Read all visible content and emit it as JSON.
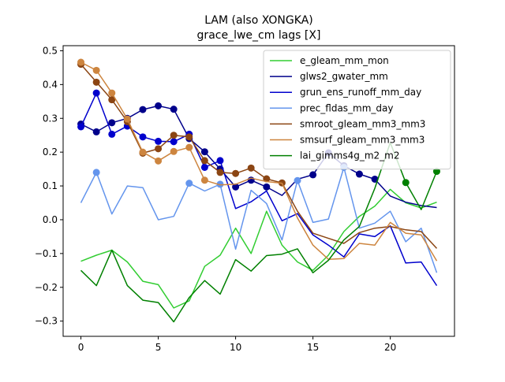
{
  "chart_data": {
    "type": "line",
    "title": "LAM (also XONGKA)",
    "subtitle": "grace_lwe_cm lags [X]",
    "xlabel": "",
    "ylabel": "",
    "xlim": [
      -1.15,
      24.15
    ],
    "ylim": [
      -0.345,
      0.515
    ],
    "xticks": [
      0,
      5,
      10,
      15,
      20
    ],
    "yticks": [
      -0.3,
      -0.2,
      -0.1,
      0.0,
      0.1,
      0.2,
      0.3,
      0.4,
      0.5
    ],
    "ytick_labels": [
      "−0.3",
      "−0.2",
      "−0.1",
      "0.0",
      "0.1",
      "0.2",
      "0.3",
      "0.4",
      "0.5"
    ],
    "grid": false,
    "legend_position": "top-right",
    "x": [
      0,
      1,
      2,
      3,
      4,
      5,
      6,
      7,
      8,
      9,
      10,
      11,
      12,
      13,
      14,
      15,
      16,
      17,
      18,
      19,
      20,
      21,
      22,
      23
    ],
    "series": [
      {
        "name": "e_gleam_mm_mon",
        "color": "#32cd32",
        "values": [
          -0.123,
          -0.105,
          -0.09,
          -0.125,
          -0.182,
          -0.192,
          -0.261,
          -0.24,
          -0.138,
          -0.105,
          -0.025,
          -0.1,
          0.025,
          -0.075,
          -0.125,
          -0.15,
          -0.105,
          -0.035,
          0.01,
          0.04,
          0.09,
          0.05,
          0.035,
          0.052
        ],
        "markers": []
      },
      {
        "name": "glws2_gwater_mm",
        "color": "#00008b",
        "values": [
          0.283,
          0.26,
          0.287,
          0.3,
          0.326,
          0.337,
          0.327,
          0.24,
          0.201,
          0.15,
          0.097,
          0.117,
          0.097,
          0.072,
          0.12,
          0.133,
          0.198,
          0.16,
          0.135,
          0.12,
          0.07,
          0.052,
          0.042,
          0.036
        ],
        "markers": [
          0,
          1,
          2,
          3,
          4,
          5,
          6,
          7,
          8,
          9,
          10,
          11,
          12,
          15,
          16,
          17,
          18,
          19
        ]
      },
      {
        "name": "grun_ens_runoff_mm_day",
        "color": "#0000cd",
        "values": [
          0.275,
          0.375,
          0.253,
          0.277,
          0.245,
          0.232,
          0.231,
          0.253,
          0.155,
          0.175,
          0.033,
          0.053,
          0.085,
          -0.003,
          0.018,
          -0.045,
          -0.075,
          -0.11,
          -0.042,
          -0.05,
          -0.018,
          -0.128,
          -0.125,
          -0.195
        ],
        "markers": [
          0,
          1,
          2,
          3,
          4,
          5,
          6,
          7,
          8,
          9
        ]
      },
      {
        "name": "prec_fldas_mm_day",
        "color": "#6495ed",
        "values": [
          0.05,
          0.14,
          0.017,
          0.1,
          0.095,
          0.0,
          0.01,
          0.108,
          0.085,
          0.105,
          -0.087,
          0.087,
          0.048,
          -0.06,
          0.116,
          -0.008,
          0.002,
          0.155,
          -0.025,
          -0.01,
          0.025,
          -0.065,
          -0.025,
          -0.157
        ],
        "markers": [
          1,
          7,
          9,
          14,
          17
        ]
      },
      {
        "name": "smroot_gleam_mm3_mm3",
        "color": "#8b4513",
        "values": [
          0.46,
          0.407,
          0.355,
          0.29,
          0.197,
          0.21,
          0.25,
          0.245,
          0.175,
          0.14,
          0.137,
          0.153,
          0.121,
          0.109,
          0.025,
          -0.04,
          -0.055,
          -0.07,
          -0.038,
          -0.025,
          -0.02,
          -0.03,
          -0.035,
          -0.085
        ],
        "markers": [
          0,
          1,
          2,
          3,
          4,
          5,
          6,
          7,
          8,
          9,
          10,
          11,
          12,
          13
        ]
      },
      {
        "name": "smsurf_gleam_mm3_mm3",
        "color": "#cd853f",
        "values": [
          0.466,
          0.442,
          0.375,
          0.298,
          0.2,
          0.174,
          0.202,
          0.214,
          0.117,
          0.103,
          0.105,
          0.123,
          0.113,
          0.108,
          0.005,
          -0.075,
          -0.117,
          -0.115,
          -0.07,
          -0.075,
          -0.008,
          -0.04,
          -0.045,
          -0.122
        ],
        "markers": [
          0,
          1,
          2,
          3,
          4,
          5,
          6,
          7,
          8
        ]
      },
      {
        "name": "lai_gimms4g_m2_m2",
        "color": "#008000",
        "values": [
          -0.15,
          -0.195,
          -0.09,
          -0.195,
          -0.238,
          -0.245,
          -0.302,
          -0.23,
          -0.18,
          -0.22,
          -0.118,
          -0.152,
          -0.106,
          -0.102,
          -0.086,
          -0.157,
          -0.12,
          -0.06,
          -0.02,
          0.093,
          0.228,
          0.11,
          0.03,
          0.143
        ],
        "markers": [
          21,
          23
        ]
      }
    ]
  }
}
